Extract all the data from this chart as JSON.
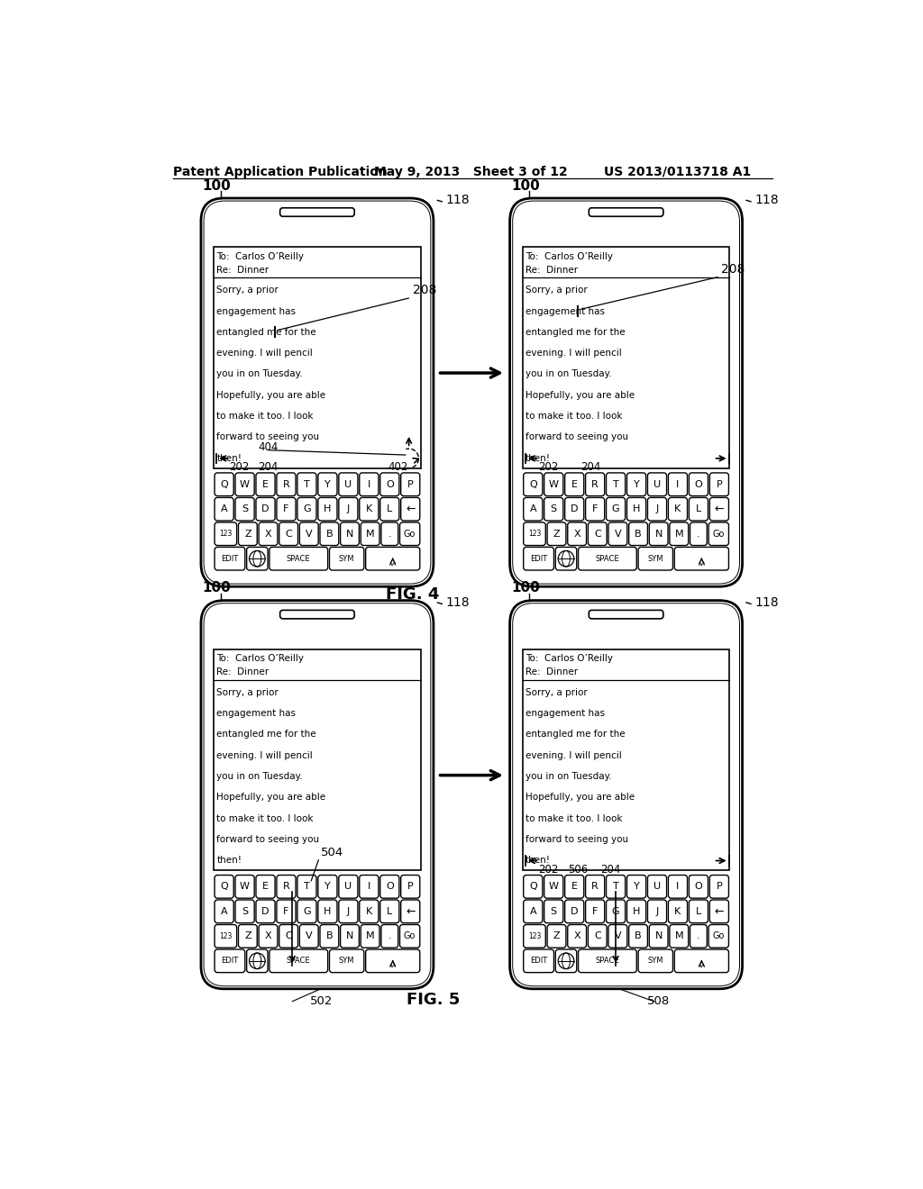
{
  "bg_color": "#ffffff",
  "header_left": "Patent Application Publication",
  "header_mid": "May 9, 2013   Sheet 3 of 12",
  "header_right": "US 2013/0113718 A1",
  "fig4_label": "FIG. 4",
  "fig5_label": "FIG. 5",
  "email_to": "To:  Carlos O’Reilly",
  "email_re": "Re:  Dinner",
  "email_body_lines": [
    "Sorry, a prior",
    "engagement has",
    "entangled me for the",
    "evening. I will pencil",
    "you in on Tuesday.",
    "Hopefully, you are able",
    "to make it too. I look",
    "forward to seeing you",
    "then!"
  ],
  "keyboard_row1": [
    "Q",
    "W",
    "E",
    "R",
    "T",
    "Y",
    "U",
    "I",
    "O",
    "P"
  ],
  "keyboard_row2": [
    "A",
    "S",
    "D",
    "F",
    "G",
    "H",
    "J",
    "K",
    "L",
    "←"
  ],
  "keyboard_row3_letters": [
    "Z",
    "X",
    "C",
    "V",
    "B",
    "N",
    "M"
  ],
  "keyboard_bottom_labels": [
    "EDIT",
    "SPACE",
    "SYM"
  ],
  "label_100": "100",
  "label_118": "118",
  "label_202": "202",
  "label_204": "204",
  "label_208": "208",
  "label_402": "402",
  "label_404": "404",
  "label_502": "502",
  "label_504": "504",
  "label_506": "506",
  "label_508": "508"
}
